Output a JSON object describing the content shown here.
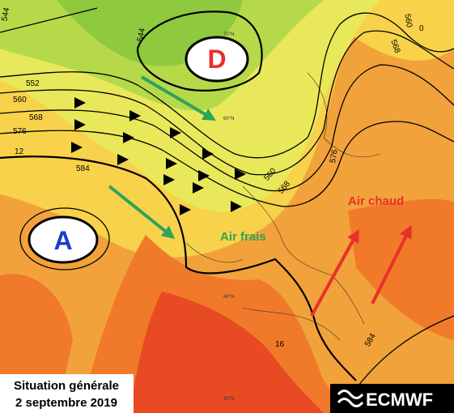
{
  "pressure_centers": [
    {
      "label": "D"
    },
    {
      "label": "A"
    }
  ],
  "air_masses": {
    "warm": "Air chaud",
    "cold": "Air frais"
  },
  "contour_labels": [
    "544",
    "544",
    "552",
    "560",
    "568",
    "576",
    "584",
    "12",
    "560",
    "568",
    "576",
    "584",
    "560",
    "568",
    "16",
    "0"
  ],
  "latitude_labels": [
    "70°N",
    "60°N",
    "40°N",
    "30°N"
  ],
  "caption": {
    "line1": "Situation générale",
    "line2": "2 septembre 2019"
  },
  "logo": "ECMWF"
}
